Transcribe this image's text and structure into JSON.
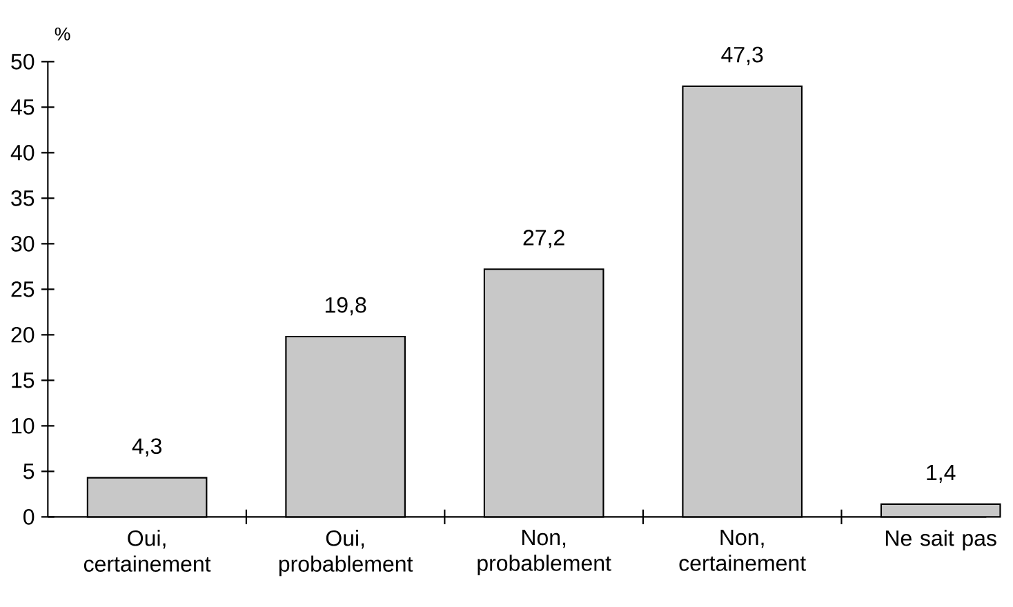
{
  "chart_data": {
    "type": "bar",
    "ylabel": "%",
    "categories": [
      "Oui, certainement",
      "Oui, probablement",
      "Non, probablement",
      "Non, certainement",
      "Ne sait pas"
    ],
    "values": [
      4.3,
      19.8,
      27.2,
      47.3,
      1.4
    ],
    "value_labels": [
      "4,3",
      "19,8",
      "27,2",
      "47,3",
      "1,4"
    ],
    "color": "#c8c8c8",
    "ylim": [
      0,
      50
    ],
    "yticks": [
      0,
      5,
      10,
      15,
      20,
      25,
      30,
      35,
      40,
      45,
      50
    ],
    "grid": false
  }
}
